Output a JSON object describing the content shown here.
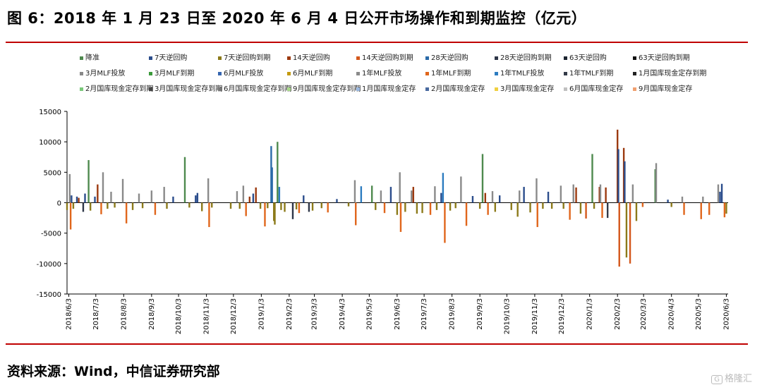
{
  "title": "图 6：2018 年 1 月 23 日至 2020 年 6 月 4 日公开市场操作和到期监控（亿元）",
  "source": "资料来源：Wind，中信证券研究部",
  "watermark": {
    "box": "G",
    "text": "格隆汇"
  },
  "legend": [
    {
      "label": "降准",
      "color": "#4e8a4e"
    },
    {
      "label": "7天逆回购",
      "color": "#2b4d8c"
    },
    {
      "label": "7天逆回购到期",
      "color": "#8c7a1a"
    },
    {
      "label": "14天逆回购",
      "color": "#9c3a10"
    },
    {
      "label": "14天逆回购到期",
      "color": "#d4581c"
    },
    {
      "label": "28天逆回购",
      "color": "#2a6aa8"
    },
    {
      "label": "28天逆回购到期",
      "color": "#2e3648"
    },
    {
      "label": "63天逆回购",
      "color": "#1c2430"
    },
    {
      "label": "63天逆回购到期",
      "color": "#111111"
    },
    {
      "label": "3月MLF投放",
      "color": "#888888"
    },
    {
      "label": "3月MLF到期",
      "color": "#3a9a3a"
    },
    {
      "label": "6月MLF投放",
      "color": "#3565b0"
    },
    {
      "label": "6月MLF到期",
      "color": "#c49a10"
    },
    {
      "label": "1年MLF投放",
      "color": "#8a8a8a"
    },
    {
      "label": "1年MLF到期",
      "color": "#e0661c"
    },
    {
      "label": "1年TMLF投放",
      "color": "#2c7cc0"
    },
    {
      "label": "1年TMLF到期",
      "color": "#333a48"
    },
    {
      "label": "1月国库现金定存到期",
      "color": "#222222"
    },
    {
      "label": "2月国库现金定存到期",
      "color": "#7ac87a"
    },
    {
      "label": "3月国库现金定存到期",
      "color": "#444444"
    },
    {
      "label": "6月国库现金定存到期",
      "color": "#777777"
    },
    {
      "label": "9月国库现金定存到期",
      "color": "#a8d88a"
    },
    {
      "label": "1月国库现金定存",
      "color": "#9ab8e0"
    },
    {
      "label": "2月国库现金定存",
      "color": "#4a6aa0"
    },
    {
      "label": "3月国库现金定存",
      "color": "#f0d040"
    },
    {
      "label": "6月国库现金定存",
      "color": "#c0c0c0"
    },
    {
      "label": "9月国库现金定存",
      "color": "#f0a070"
    }
  ],
  "chart_data": {
    "type": "bar",
    "xlabel": "",
    "ylabel": "",
    "ylim": [
      -15000,
      15000
    ],
    "yticks": [
      -15000,
      -10000,
      -5000,
      0,
      5000,
      10000,
      15000
    ],
    "xticks": [
      "2018/6/3",
      "2018/7/3",
      "2018/8/3",
      "2018/9/3",
      "2018/10/3",
      "2018/11/3",
      "2018/12/3",
      "2019/1/3",
      "2019/2/3",
      "2019/3/3",
      "2019/4/3",
      "2019/5/3",
      "2019/6/3",
      "2019/7/3",
      "2019/8/3",
      "2019/9/3",
      "2019/10/3",
      "2019/11/3",
      "2019/12/3",
      "2020/1/3",
      "2020/2/3",
      "2020/3/3",
      "2020/4/3",
      "2020/5/3",
      "2020/6/3"
    ],
    "x_start": "2018-06-01",
    "x_end": "2020-06-05",
    "bars": [
      {
        "date": "2018-06-01",
        "series": "7天逆回购到期",
        "value": -1200
      },
      {
        "date": "2018-06-04",
        "series": "1年MLF投放",
        "value": 4700
      },
      {
        "date": "2018-06-05",
        "series": "1年MLF到期",
        "value": -4400
      },
      {
        "date": "2018-06-06",
        "series": "7天逆回购",
        "value": 1200
      },
      {
        "date": "2018-06-08",
        "series": "7天逆回购到期",
        "value": -1000
      },
      {
        "date": "2018-06-12",
        "series": "7天逆回购",
        "value": 1000
      },
      {
        "date": "2018-06-14",
        "series": "14天逆回购",
        "value": 800
      },
      {
        "date": "2018-06-19",
        "series": "28天逆回购到期",
        "value": -1500
      },
      {
        "date": "2018-06-21",
        "series": "7天逆回购",
        "value": 1500
      },
      {
        "date": "2018-06-25",
        "series": "降准",
        "value": 7000
      },
      {
        "date": "2018-06-27",
        "series": "7天逆回购到期",
        "value": -1300
      },
      {
        "date": "2018-07-02",
        "series": "7天逆回购",
        "value": 1000
      },
      {
        "date": "2018-07-05",
        "series": "14天逆回购",
        "value": 3000
      },
      {
        "date": "2018-07-09",
        "series": "1年MLF到期",
        "value": -1900
      },
      {
        "date": "2018-07-11",
        "series": "1年MLF投放",
        "value": 5000
      },
      {
        "date": "2018-07-16",
        "series": "7天逆回购到期",
        "value": -1000
      },
      {
        "date": "2018-07-20",
        "series": "1年MLF投放",
        "value": 1800
      },
      {
        "date": "2018-07-24",
        "series": "7天逆回购到期",
        "value": -800
      },
      {
        "date": "2018-08-02",
        "series": "1年MLF投放",
        "value": 3900
      },
      {
        "date": "2018-08-06",
        "series": "1年MLF到期",
        "value": -3400
      },
      {
        "date": "2018-08-13",
        "series": "7天逆回购到期",
        "value": -1200
      },
      {
        "date": "2018-08-20",
        "series": "1年MLF投放",
        "value": 1500
      },
      {
        "date": "2018-08-24",
        "series": "7天逆回购到期",
        "value": -900
      },
      {
        "date": "2018-09-03",
        "series": "1年MLF投放",
        "value": 2000
      },
      {
        "date": "2018-09-07",
        "series": "1年MLF到期",
        "value": -2000
      },
      {
        "date": "2018-09-17",
        "series": "1年MLF投放",
        "value": 2600
      },
      {
        "date": "2018-09-20",
        "series": "7天逆回购到期",
        "value": -1000
      },
      {
        "date": "2018-09-27",
        "series": "7天逆回购",
        "value": 1000
      },
      {
        "date": "2018-10-10",
        "series": "降准",
        "value": 7500
      },
      {
        "date": "2018-10-15",
        "series": "7天逆回购到期",
        "value": -800
      },
      {
        "date": "2018-10-22",
        "series": "7天逆回购",
        "value": 1200
      },
      {
        "date": "2018-10-24",
        "series": "7天逆回购",
        "value": 1600
      },
      {
        "date": "2018-10-29",
        "series": "7天逆回购到期",
        "value": -1400
      },
      {
        "date": "2018-11-05",
        "series": "1年MLF投放",
        "value": 4000
      },
      {
        "date": "2018-11-06",
        "series": "1年MLF到期",
        "value": -4000
      },
      {
        "date": "2018-11-09",
        "series": "7天逆回购到期",
        "value": -800
      },
      {
        "date": "2018-11-30",
        "series": "7天逆回购到期",
        "value": -1000
      },
      {
        "date": "2018-12-07",
        "series": "1年MLF投放",
        "value": 1900
      },
      {
        "date": "2018-12-10",
        "series": "7天逆回购到期",
        "value": -1000
      },
      {
        "date": "2018-12-14",
        "series": "1年MLF投放",
        "value": 2800
      },
      {
        "date": "2018-12-17",
        "series": "1年MLF到期",
        "value": -2200
      },
      {
        "date": "2018-12-21",
        "series": "14天逆回购",
        "value": 1000
      },
      {
        "date": "2018-12-25",
        "series": "7天逆回购",
        "value": 1500
      },
      {
        "date": "2018-12-28",
        "series": "14天逆回购",
        "value": 2500
      },
      {
        "date": "2019-01-02",
        "series": "7天逆回购到期",
        "value": -1000
      },
      {
        "date": "2019-01-07",
        "series": "1年MLF到期",
        "value": -3900
      },
      {
        "date": "2019-01-10",
        "series": "7天逆回购到期",
        "value": -900
      },
      {
        "date": "2019-01-14",
        "series": "28天逆回购",
        "value": 9300
      },
      {
        "date": "2019-01-15",
        "series": "28天逆回购",
        "value": 5800
      },
      {
        "date": "2019-01-17",
        "series": "7天逆回购到期",
        "value": -3000
      },
      {
        "date": "2019-01-18",
        "series": "7天逆回购到期",
        "value": -3600
      },
      {
        "date": "2019-01-21",
        "series": "降准",
        "value": 10000
      },
      {
        "date": "2019-01-23",
        "series": "1年TMLF投放",
        "value": 2600
      },
      {
        "date": "2019-01-25",
        "series": "7天逆回购到期",
        "value": -1200
      },
      {
        "date": "2019-01-29",
        "series": "7天逆回购到期",
        "value": -1500
      },
      {
        "date": "2019-02-07",
        "series": "28天逆回购到期",
        "value": -2700
      },
      {
        "date": "2019-02-11",
        "series": "7天逆回购到期",
        "value": -1100
      },
      {
        "date": "2019-02-14",
        "series": "1年MLF到期",
        "value": -1700
      },
      {
        "date": "2019-02-19",
        "series": "7天逆回购",
        "value": 1200
      },
      {
        "date": "2019-02-25",
        "series": "28天逆回购到期",
        "value": -1500
      },
      {
        "date": "2019-03-01",
        "series": "7天逆回购到期",
        "value": -1300
      },
      {
        "date": "2019-03-11",
        "series": "7天逆回购到期",
        "value": -900
      },
      {
        "date": "2019-03-18",
        "series": "1年MLF到期",
        "value": -1600
      },
      {
        "date": "2019-03-28",
        "series": "7天逆回购",
        "value": 600
      },
      {
        "date": "2019-04-10",
        "series": "7天逆回购到期",
        "value": -600
      },
      {
        "date": "2019-04-17",
        "series": "1年MLF投放",
        "value": 3700
      },
      {
        "date": "2019-04-18",
        "series": "1年MLF到期",
        "value": -3700
      },
      {
        "date": "2019-04-24",
        "series": "1年TMLF投放",
        "value": 2700
      },
      {
        "date": "2019-05-06",
        "series": "降准",
        "value": 2800
      },
      {
        "date": "2019-05-10",
        "series": "7天逆回购到期",
        "value": -1200
      },
      {
        "date": "2019-05-16",
        "series": "1年MLF投放",
        "value": 2000
      },
      {
        "date": "2019-05-20",
        "series": "1年MLF到期",
        "value": -1700
      },
      {
        "date": "2019-05-27",
        "series": "7天逆回购",
        "value": 2600
      },
      {
        "date": "2019-06-03",
        "series": "7天逆回购到期",
        "value": -2000
      },
      {
        "date": "2019-06-06",
        "series": "1年MLF投放",
        "value": 5000
      },
      {
        "date": "2019-06-07",
        "series": "1年MLF到期",
        "value": -4800
      },
      {
        "date": "2019-06-12",
        "series": "7天逆回购到期",
        "value": -1500
      },
      {
        "date": "2019-06-19",
        "series": "1年MLF投放",
        "value": 2000
      },
      {
        "date": "2019-06-21",
        "series": "14天逆回购",
        "value": 2600
      },
      {
        "date": "2019-06-25",
        "series": "7天逆回购到期",
        "value": -1800
      },
      {
        "date": "2019-07-01",
        "series": "7天逆回购到期",
        "value": -1700
      },
      {
        "date": "2019-07-10",
        "series": "1年MLF到期",
        "value": -2000
      },
      {
        "date": "2019-07-15",
        "series": "1年MLF投放",
        "value": 2700
      },
      {
        "date": "2019-07-17",
        "series": "7天逆回购到期",
        "value": -1200
      },
      {
        "date": "2019-07-22",
        "series": "7天逆回购",
        "value": 1600
      },
      {
        "date": "2019-07-24",
        "series": "1年TMLF投放",
        "value": 4900
      },
      {
        "date": "2019-07-26",
        "series": "1年MLF到期",
        "value": -6600
      },
      {
        "date": "2019-08-01",
        "series": "7天逆回购到期",
        "value": -1300
      },
      {
        "date": "2019-08-07",
        "series": "7天逆回购到期",
        "value": -900
      },
      {
        "date": "2019-08-13",
        "series": "1年MLF投放",
        "value": 4300
      },
      {
        "date": "2019-08-19",
        "series": "1年MLF到期",
        "value": -3800
      },
      {
        "date": "2019-08-26",
        "series": "7天逆回购",
        "value": 1100
      },
      {
        "date": "2019-09-03",
        "series": "7天逆回购到期",
        "value": -1000
      },
      {
        "date": "2019-09-06",
        "series": "降准",
        "value": 8000
      },
      {
        "date": "2019-09-09",
        "series": "14天逆回购",
        "value": 1600
      },
      {
        "date": "2019-09-12",
        "series": "1年MLF到期",
        "value": -2000
      },
      {
        "date": "2019-09-17",
        "series": "1年MLF投放",
        "value": 1900
      },
      {
        "date": "2019-09-20",
        "series": "7天逆回购到期",
        "value": -1500
      },
      {
        "date": "2019-09-25",
        "series": "7天逆回购",
        "value": 1200
      },
      {
        "date": "2019-10-08",
        "series": "7天逆回购到期",
        "value": -1200
      },
      {
        "date": "2019-10-15",
        "series": "7天逆回购到期",
        "value": -2300
      },
      {
        "date": "2019-10-17",
        "series": "1年MLF投放",
        "value": 2000
      },
      {
        "date": "2019-10-22",
        "series": "7天逆回购",
        "value": 2600
      },
      {
        "date": "2019-10-29",
        "series": "7天逆回购到期",
        "value": -1600
      },
      {
        "date": "2019-11-05",
        "series": "1年MLF投放",
        "value": 4000
      },
      {
        "date": "2019-11-06",
        "series": "1年MLF到期",
        "value": -4000
      },
      {
        "date": "2019-11-12",
        "series": "7天逆回购到期",
        "value": -1000
      },
      {
        "date": "2019-11-18",
        "series": "7天逆回购",
        "value": 1800
      },
      {
        "date": "2019-11-22",
        "series": "7天逆回购到期",
        "value": -1000
      },
      {
        "date": "2019-12-02",
        "series": "1年MLF投放",
        "value": 2800
      },
      {
        "date": "2019-12-05",
        "series": "7天逆回购到期",
        "value": -1000
      },
      {
        "date": "2019-12-12",
        "series": "1年MLF到期",
        "value": -2800
      },
      {
        "date": "2019-12-16",
        "series": "1年MLF投放",
        "value": 3000
      },
      {
        "date": "2019-12-19",
        "series": "14天逆回购",
        "value": 2500
      },
      {
        "date": "2019-12-24",
        "series": "7天逆回购到期",
        "value": -1800
      },
      {
        "date": "2019-12-30",
        "series": "14天逆回购到期",
        "value": -2600
      },
      {
        "date": "2020-01-06",
        "series": "降准",
        "value": 8000
      },
      {
        "date": "2020-01-08",
        "series": "7天逆回购到期",
        "value": -1000
      },
      {
        "date": "2020-01-14",
        "series": "14天逆回购",
        "value": 2600
      },
      {
        "date": "2020-01-15",
        "series": "1年MLF投放",
        "value": 3000
      },
      {
        "date": "2020-01-17",
        "series": "1年MLF到期",
        "value": -2500
      },
      {
        "date": "2020-01-21",
        "series": "14天逆回购",
        "value": 2500
      },
      {
        "date": "2020-01-23",
        "series": "1年TMLF到期",
        "value": -2500
      },
      {
        "date": "2020-02-03",
        "series": "14天逆回购",
        "value": 12000
      },
      {
        "date": "2020-02-04",
        "series": "7天逆回购",
        "value": 8800
      },
      {
        "date": "2020-02-05",
        "series": "14天逆回购到期",
        "value": -10500
      },
      {
        "date": "2020-02-10",
        "series": "14天逆回购",
        "value": 9000
      },
      {
        "date": "2020-02-11",
        "series": "7天逆回购",
        "value": 6800
      },
      {
        "date": "2020-02-13",
        "series": "7天逆回购到期",
        "value": -9000
      },
      {
        "date": "2020-02-17",
        "series": "14天逆回购到期",
        "value": -10000
      },
      {
        "date": "2020-02-20",
        "series": "1年MLF投放",
        "value": 3000
      },
      {
        "date": "2020-02-24",
        "series": "7天逆回购到期",
        "value": -3000
      },
      {
        "date": "2020-03-02",
        "series": "1年MLF到期",
        "value": -700
      },
      {
        "date": "2020-03-16",
        "series": "降准",
        "value": 5500
      },
      {
        "date": "2020-03-17",
        "series": "1年MLF投放",
        "value": 6500
      },
      {
        "date": "2020-03-30",
        "series": "7天逆回购",
        "value": 500
      },
      {
        "date": "2020-04-03",
        "series": "7天逆回购到期",
        "value": -700
      },
      {
        "date": "2020-04-15",
        "series": "1年MLF投放",
        "value": 1000
      },
      {
        "date": "2020-04-17",
        "series": "1年MLF到期",
        "value": -2000
      },
      {
        "date": "2020-05-06",
        "series": "1年MLF到期",
        "value": -2700
      },
      {
        "date": "2020-05-08",
        "series": "1年MLF投放",
        "value": 1000
      },
      {
        "date": "2020-05-15",
        "series": "1年MLF到期",
        "value": -2000
      },
      {
        "date": "2020-05-25",
        "series": "1年MLF投放",
        "value": 3000
      },
      {
        "date": "2020-05-27",
        "series": "7天逆回购",
        "value": 1800
      },
      {
        "date": "2020-05-29",
        "series": "7天逆回购",
        "value": 3100
      },
      {
        "date": "2020-06-01",
        "series": "1年MLF到期",
        "value": -2400
      },
      {
        "date": "2020-06-03",
        "series": "7天逆回购到期",
        "value": -1800
      }
    ]
  }
}
